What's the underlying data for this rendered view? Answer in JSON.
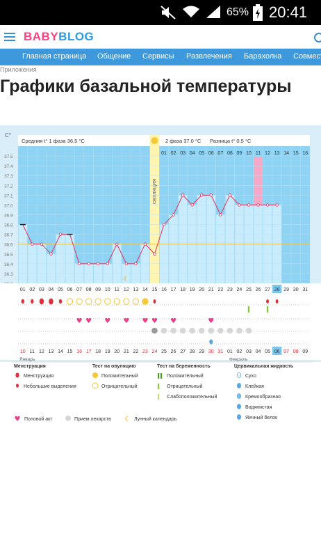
{
  "status_bar": {
    "battery": "65%",
    "time": "20:41"
  },
  "site": {
    "logo_part1": "BABY",
    "logo_part2": "BLOG"
  },
  "nav": [
    "Главная страница",
    "Общение",
    "Сервисы",
    "Развлечения",
    "Барахолка",
    "Совместные"
  ],
  "breadcrumb": "Приложения",
  "page_title": "Графики базальной температуры",
  "chart_data": {
    "type": "line",
    "unit_label": "C°",
    "ylim": [
      36.2,
      37.6
    ],
    "y_ticks": [
      "37.5",
      "37.4",
      "37.3",
      "37.2",
      "37.1",
      "37.0",
      "36.9",
      "36.8",
      "36.7",
      "36.6",
      "36.5",
      "36.4",
      "36.3",
      "36.2"
    ],
    "phase1_label": "Средняя t° 1 фаза",
    "phase1_value": "36.5 °C",
    "phase2_label": "2 фаза",
    "phase2_value": "37.0 °C",
    "diff_label": "Разница t°",
    "diff_value": "0.5 °C",
    "ovulation_label": "ОВУЛЯЦИЯ",
    "days": [
      "01",
      "02",
      "03",
      "04",
      "05",
      "06",
      "07",
      "08",
      "09",
      "10",
      "11",
      "12",
      "13",
      "14",
      "15",
      "16",
      "17",
      "18",
      "19",
      "20",
      "21",
      "22",
      "23",
      "24",
      "25",
      "26",
      "27",
      "28",
      "29",
      "30",
      "31"
    ],
    "temps": [
      36.8,
      36.6,
      36.6,
      36.5,
      36.7,
      36.7,
      36.4,
      36.4,
      36.4,
      36.4,
      36.6,
      36.4,
      36.4,
      36.6,
      36.5,
      36.8,
      36.9,
      37.1,
      37.0,
      37.1,
      37.1,
      36.9,
      37.1,
      37.0,
      37.0,
      37.0,
      37.0,
      37.0,
      null,
      null,
      null
    ],
    "phase2_days": [
      "01",
      "02",
      "03",
      "04",
      "05",
      "06",
      "07",
      "08",
      "09",
      "10",
      "11",
      "12",
      "13",
      "14",
      "15",
      "16"
    ],
    "highlight_phase2_day": "11",
    "today_day": "28",
    "dates": [
      "10",
      "11",
      "12",
      "13",
      "14",
      "15",
      "16",
      "17",
      "18",
      "19",
      "20",
      "21",
      "22",
      "23",
      "24",
      "25",
      "26",
      "27",
      "28",
      "29",
      "30",
      "31",
      "01",
      "02",
      "03",
      "04",
      "05",
      "06",
      "07",
      "08",
      "09"
    ],
    "red_dates": [
      "10",
      "16",
      "17",
      "23",
      "24",
      "30",
      "31",
      "07",
      "08"
    ],
    "today_date": "06",
    "month_jan": "Январь",
    "month_feb": "Февраль",
    "menstruation_days": [
      1,
      2,
      3,
      4,
      5
    ],
    "menstruation_heavy_days": [
      3,
      4
    ],
    "ovulation_test_days": [
      6,
      7,
      8,
      9,
      10,
      11,
      12,
      13,
      14
    ],
    "ovulation_positive_day": 14,
    "extra_drops_days": [
      15,
      27,
      28
    ],
    "preg_tests_days": [
      25,
      27
    ],
    "heart_days": [
      7,
      8,
      10,
      12,
      14,
      15,
      17,
      21
    ],
    "pill_days": [
      15,
      16,
      17,
      18,
      19,
      20,
      21,
      22,
      23,
      24,
      25
    ],
    "egg_white_days": [
      21
    ],
    "moon_day": 12,
    "avg_line_temp": 36.6,
    "colors": {
      "bar": "#c8ecfb",
      "plot_bg": "#8fd3f4",
      "ovulation": "#fff5b0",
      "highlight": "#f5a9c6",
      "line": "#e02e5a"
    }
  },
  "legend": {
    "menstruation": {
      "title": "Менструация",
      "items": [
        "Менструация",
        "Небольшие выделения"
      ]
    },
    "ovulation_test": {
      "title": "Тест на овуляцию",
      "items": [
        "Положительный",
        "Отрицательный"
      ]
    },
    "pregnancy_test": {
      "title": "Тест на беременность",
      "items": [
        "Положительный",
        "Отрицательный",
        "Слабоположительный"
      ]
    },
    "cervical": {
      "title": "Цервикальная жидкость",
      "items": [
        "Сухо",
        "Клейкая",
        "Кремообразная",
        "Водянистая",
        "Яичный белок"
      ]
    },
    "bottom": [
      "Половой акт",
      "Прием лекарств",
      "Лунный календарь"
    ]
  }
}
